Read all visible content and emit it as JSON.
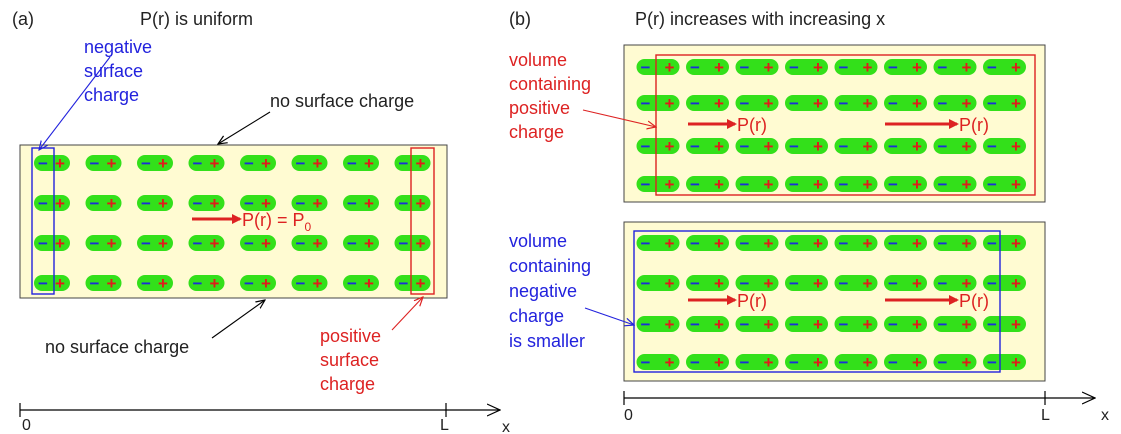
{
  "panel_a": {
    "label": "(a)",
    "title": "P(r) is uniform",
    "neg_surface_label": [
      "negative",
      "surface",
      "charge"
    ],
    "no_surface_top": "no surface charge",
    "no_surface_bottom": "no surface charge",
    "pos_surface_label": [
      "positive",
      "surface",
      "charge"
    ],
    "polarization_label": "P(r) = P",
    "polarization_subscript": "0",
    "axis_start": "0",
    "axis_end": "L",
    "axis_var": "x",
    "dipole_rows": 4,
    "dipole_cols": 8
  },
  "panel_b": {
    "label": "(b)",
    "title": "P(r) increases with increasing x",
    "top_volume_label": [
      "volume",
      "containing",
      "positive",
      "charge"
    ],
    "bottom_volume_label": [
      "volume",
      "containing",
      "negative",
      "charge",
      "is smaller"
    ],
    "polarization_label": "P(r)",
    "axis_start": "0",
    "axis_end": "L",
    "axis_var": "x",
    "dipole_rows": 4,
    "dipole_cols": 8
  },
  "symbols": {
    "minus": "−",
    "plus": "+"
  },
  "colors": {
    "box_fill": "#fffbd2",
    "dipole": "#33e01a",
    "minus": "#1a2fd8",
    "plus": "#e01b1b",
    "blue": "#2222dd",
    "red": "#dd2222",
    "axis": "#000000"
  }
}
